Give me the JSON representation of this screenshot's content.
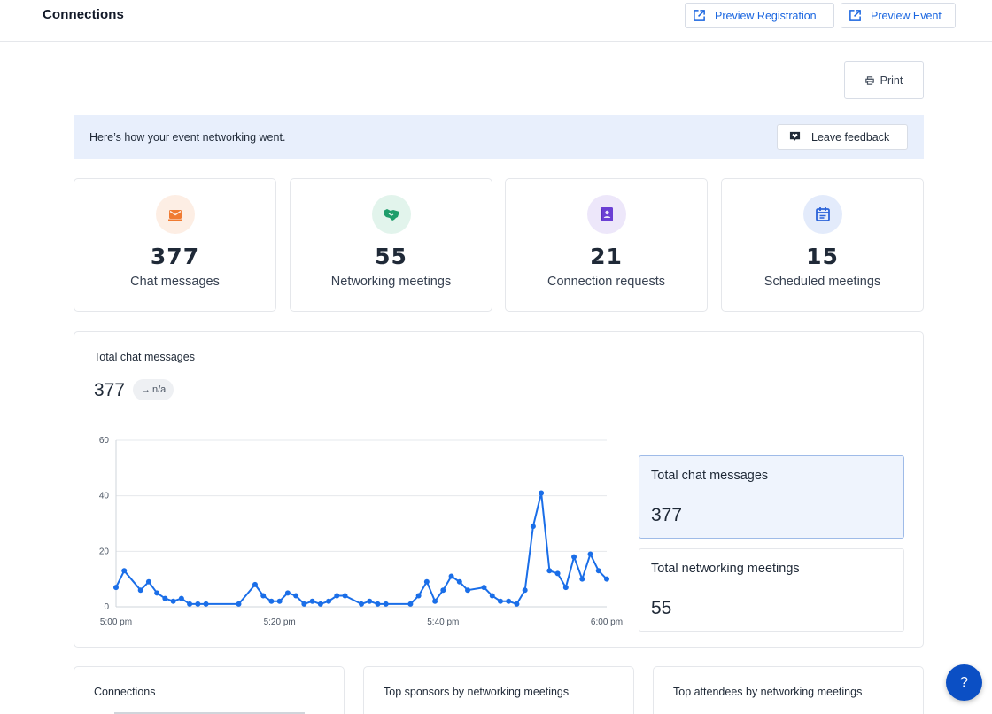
{
  "header": {
    "title": "Connections",
    "preview_registration": "Preview Registration",
    "preview_event": "Preview Event"
  },
  "toolbar": {
    "print_label": "Print"
  },
  "banner": {
    "text": "Here’s how your event networking went.",
    "feedback_label": "Leave feedback"
  },
  "stats": [
    {
      "value": "377",
      "label": "Chat messages",
      "icon": "mail-icon",
      "color": "#f07b32",
      "bg": "#fdeee4"
    },
    {
      "value": "55",
      "label": "Networking meetings",
      "icon": "handshake-icon",
      "color": "#1f9d6b",
      "bg": "#e2f4ec"
    },
    {
      "value": "21",
      "label": "Connection requests",
      "icon": "contact-book-icon",
      "color": "#6b3fd4",
      "bg": "#ede7fa"
    },
    {
      "value": "15",
      "label": "Scheduled meetings",
      "icon": "calendar-icon",
      "color": "#2b63d9",
      "bg": "#e3ebfb"
    }
  ],
  "chart_panel": {
    "title": "Total chat messages",
    "value": "377",
    "delta": "n/a"
  },
  "chart_data": {
    "type": "line",
    "x_label_ticks": [
      "5:00 pm",
      "5:20 pm",
      "5:40 pm",
      "6:00 pm"
    ],
    "x_range_minutes": [
      0,
      60
    ],
    "ylim": [
      0,
      60
    ],
    "y_ticks": [
      0,
      20,
      40,
      60
    ],
    "grid": true,
    "color": "#1a6ee8",
    "series": [
      {
        "x": [
          0,
          1,
          3,
          4,
          5,
          6,
          7,
          8,
          9,
          10,
          11,
          15,
          17,
          18,
          19,
          20,
          21,
          22,
          23,
          24,
          25,
          26,
          27,
          28,
          30,
          31,
          32,
          33,
          36,
          37,
          38,
          39,
          40,
          41,
          42,
          43,
          45,
          46,
          47,
          48,
          49,
          50,
          51,
          52,
          53,
          54,
          55,
          56,
          57,
          58,
          59,
          60
        ],
        "y": [
          7,
          13,
          6,
          9,
          5,
          3,
          2,
          3,
          1,
          1,
          1,
          1,
          8,
          4,
          2,
          2,
          5,
          4,
          1,
          2,
          1,
          2,
          4,
          4,
          1,
          2,
          1,
          1,
          1,
          4,
          9,
          2,
          6,
          11,
          9,
          6,
          7,
          4,
          2,
          2,
          1,
          6,
          29,
          41,
          13,
          12,
          7,
          18,
          10,
          19,
          13,
          10
        ]
      }
    ]
  },
  "summary_cards": [
    {
      "label": "Total chat messages",
      "value": "377"
    },
    {
      "label": "Total networking meetings",
      "value": "55"
    }
  ],
  "bottom_cards": [
    {
      "title": "Connections"
    },
    {
      "title": "Top sponsors by networking meetings"
    },
    {
      "title": "Top attendees by networking meetings"
    }
  ],
  "help": {
    "label": "?"
  }
}
